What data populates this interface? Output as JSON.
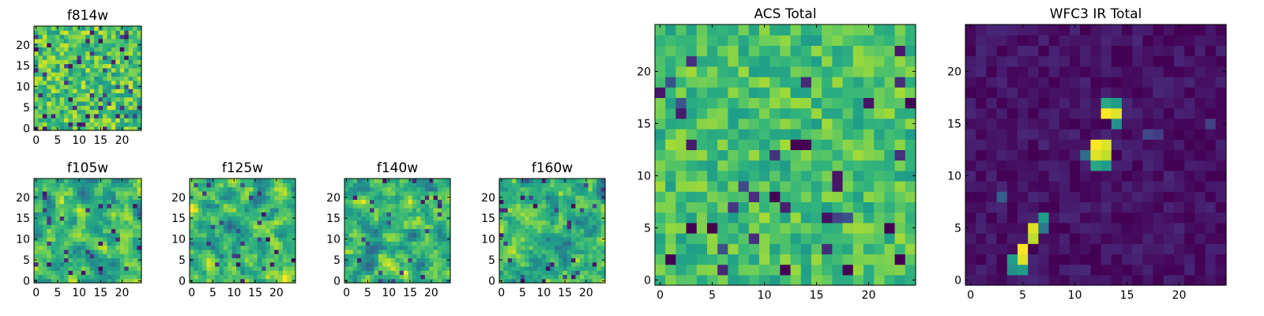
{
  "figure": {
    "description_free": true
  },
  "colormap": {
    "name": "viridis",
    "stops": [
      "#440154",
      "#482878",
      "#3e4989",
      "#31688e",
      "#26828e",
      "#1f9e89",
      "#35b779",
      "#6ece58",
      "#b5de2b",
      "#fde725"
    ]
  },
  "chart_data": [
    {
      "type": "heatmap",
      "id": "f814w",
      "title": "f814w",
      "size": 24,
      "xticks": [
        0,
        5,
        10,
        15,
        20
      ],
      "yticks": [
        0,
        5,
        10,
        15,
        20
      ],
      "xtick_labels": [
        "0",
        "5",
        "10",
        "15",
        "20"
      ],
      "ytick_labels": [
        "0",
        "5",
        "10",
        "15",
        "20"
      ],
      "field": "noise",
      "seed": 11,
      "dark_fraction": 0.06,
      "mean": 0.72,
      "spread": 0.22
    },
    {
      "type": "heatmap",
      "id": "f105w",
      "title": "f105w",
      "size": 24,
      "xticks": [
        0,
        5,
        10,
        15,
        20
      ],
      "yticks": [
        0,
        5,
        10,
        15,
        20
      ],
      "xtick_labels": [
        "0",
        "5",
        "10",
        "15",
        "20"
      ],
      "ytick_labels": [
        "0",
        "5",
        "10",
        "15",
        "20"
      ],
      "field": "smooth_noise",
      "seed": 23,
      "dark_fraction": 0.03,
      "mean": 0.66,
      "spread": 0.24
    },
    {
      "type": "heatmap",
      "id": "f125w",
      "title": "f125w",
      "size": 24,
      "xticks": [
        0,
        5,
        10,
        15,
        20
      ],
      "yticks": [
        0,
        5,
        10,
        15,
        20
      ],
      "xtick_labels": [
        "0",
        "5",
        "10",
        "15",
        "20"
      ],
      "ytick_labels": [
        "0",
        "5",
        "10",
        "15",
        "20"
      ],
      "field": "smooth_noise",
      "seed": 37,
      "dark_fraction": 0.04,
      "mean": 0.66,
      "spread": 0.24
    },
    {
      "type": "heatmap",
      "id": "f140w",
      "title": "f140w",
      "size": 24,
      "xticks": [
        0,
        5,
        10,
        15,
        20
      ],
      "yticks": [
        0,
        5,
        10,
        15,
        20
      ],
      "xtick_labels": [
        "0",
        "5",
        "10",
        "15",
        "20"
      ],
      "ytick_labels": [
        "0",
        "5",
        "10",
        "15",
        "20"
      ],
      "field": "smooth_noise",
      "seed": 41,
      "dark_fraction": 0.04,
      "mean": 0.66,
      "spread": 0.25
    },
    {
      "type": "heatmap",
      "id": "f160w",
      "title": "f160w",
      "size": 24,
      "xticks": [
        0,
        5,
        10,
        15,
        20
      ],
      "yticks": [
        0,
        5,
        10,
        15,
        20
      ],
      "xtick_labels": [
        "0",
        "5",
        "10",
        "15",
        "20"
      ],
      "ytick_labels": [
        "0",
        "5",
        "10",
        "15",
        "20"
      ],
      "field": "smooth_noise",
      "seed": 53,
      "dark_fraction": 0.04,
      "mean": 0.66,
      "spread": 0.25
    },
    {
      "type": "heatmap",
      "id": "acs_total",
      "title": "ACS Total",
      "size": 24,
      "xticks": [
        0,
        5,
        10,
        15,
        20
      ],
      "yticks": [
        0,
        5,
        10,
        15,
        20
      ],
      "xtick_labels": [
        "0",
        "5",
        "10",
        "15",
        "20"
      ],
      "ytick_labels": [
        "0",
        "5",
        "10",
        "15",
        "20"
      ],
      "field": "noise",
      "seed": 67,
      "dark_fraction": 0.035,
      "mean": 0.7,
      "spread": 0.16,
      "dark_cells": [
        [
          13,
          13
        ],
        [
          14,
          13
        ],
        [
          22,
          5
        ],
        [
          11,
          8
        ],
        [
          3,
          5
        ],
        [
          5,
          5
        ],
        [
          1,
          2
        ],
        [
          12,
          1
        ],
        [
          18,
          1
        ],
        [
          23,
          2
        ],
        [
          24,
          17
        ]
      ]
    },
    {
      "type": "heatmap",
      "id": "wfc3_ir_total",
      "title": "WFC3 IR Total",
      "size": 24,
      "xticks": [
        0,
        5,
        10,
        15,
        20
      ],
      "yticks": [
        0,
        5,
        10,
        15,
        20
      ],
      "xtick_labels": [
        "0",
        "5",
        "10",
        "15",
        "20"
      ],
      "ytick_labels": [
        "0",
        "5",
        "10",
        "15",
        "20"
      ],
      "field": "sources",
      "seed": 79,
      "mean": 0.05,
      "spread": 0.06,
      "sources": [
        {
          "x": 13,
          "y": 16,
          "peak": 1.0
        },
        {
          "x": 14,
          "y": 16,
          "peak": 0.95
        },
        {
          "x": 13,
          "y": 17,
          "peak": 0.6
        },
        {
          "x": 14,
          "y": 17,
          "peak": 0.55
        },
        {
          "x": 14,
          "y": 15,
          "peak": 0.5
        },
        {
          "x": 12,
          "y": 13,
          "peak": 1.0
        },
        {
          "x": 13,
          "y": 13,
          "peak": 0.95
        },
        {
          "x": 12,
          "y": 12,
          "peak": 0.95
        },
        {
          "x": 13,
          "y": 12,
          "peak": 0.9
        },
        {
          "x": 12,
          "y": 11,
          "peak": 0.6
        },
        {
          "x": 13,
          "y": 11,
          "peak": 0.55
        },
        {
          "x": 11,
          "y": 12,
          "peak": 0.35
        },
        {
          "x": 6,
          "y": 5,
          "peak": 0.95
        },
        {
          "x": 6,
          "y": 4,
          "peak": 0.9
        },
        {
          "x": 7,
          "y": 6,
          "peak": 0.55
        },
        {
          "x": 7,
          "y": 5,
          "peak": 0.4
        },
        {
          "x": 5,
          "y": 3,
          "peak": 1.0
        },
        {
          "x": 5,
          "y": 2,
          "peak": 0.95
        },
        {
          "x": 4,
          "y": 2,
          "peak": 0.55
        },
        {
          "x": 5,
          "y": 1,
          "peak": 0.55
        },
        {
          "x": 4,
          "y": 1,
          "peak": 0.5
        },
        {
          "x": 3,
          "y": 8,
          "peak": 0.3
        },
        {
          "x": 17,
          "y": 14,
          "peak": 0.22
        },
        {
          "x": 18,
          "y": 14,
          "peak": 0.18
        },
        {
          "x": 23,
          "y": 15,
          "peak": 0.2
        }
      ]
    }
  ]
}
